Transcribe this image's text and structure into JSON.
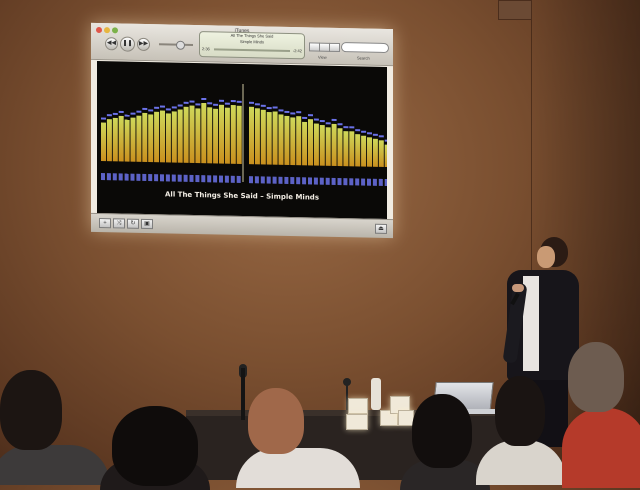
{
  "scene": {
    "description_free": true
  },
  "itunes_window": {
    "title": "iTunes",
    "lcd_line1": "All The Things She Said",
    "lcd_line2": "Simple Minds",
    "lcd_time_elapsed": "2:36",
    "lcd_time_remaining": "-2:42",
    "view_label": "View",
    "search_label": "Search",
    "colors": {
      "window_bg": "#f1ece2",
      "visualizer_bg": "#0a0907",
      "bar_low": "#c9901e",
      "bar_high": "#cfd85a",
      "peak": "#6b72e8"
    }
  },
  "visualizer": {
    "left_channel_levels": [
      0.55,
      0.6,
      0.62,
      0.65,
      0.6,
      0.63,
      0.66,
      0.7,
      0.68,
      0.72,
      0.74,
      0.7,
      0.73,
      0.76,
      0.8,
      0.82,
      0.78,
      0.86,
      0.8,
      0.78,
      0.84,
      0.8,
      0.84,
      0.83
    ],
    "right_channel_levels": [
      0.82,
      0.8,
      0.78,
      0.75,
      0.76,
      0.72,
      0.7,
      0.68,
      0.7,
      0.62,
      0.66,
      0.6,
      0.58,
      0.55,
      0.6,
      0.54,
      0.5,
      0.5,
      0.46,
      0.44,
      0.42,
      0.4,
      0.38,
      0.32
    ],
    "song_title": "All The Things She Said – Simple Minds"
  }
}
